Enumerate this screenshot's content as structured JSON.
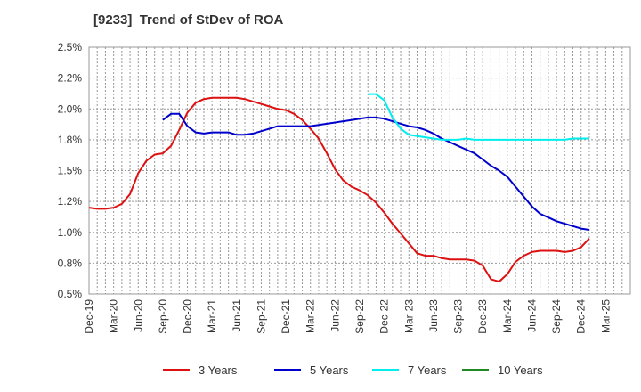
{
  "chart_data": {
    "type": "line",
    "title": "[9233]  Trend of StDev of ROA",
    "xlabel": "",
    "ylabel": "",
    "ylim": [
      0.5,
      2.5
    ],
    "y_ticks": [
      "0.5%",
      "0.8%",
      "1.0%",
      "1.2%",
      "1.5%",
      "1.8%",
      "2.0%",
      "2.2%",
      "2.5%"
    ],
    "x_ticks": [
      "Dec-19",
      "Mar-20",
      "Jun-20",
      "Sep-20",
      "Dec-20",
      "Mar-21",
      "Jun-21",
      "Sep-21",
      "Dec-21",
      "Mar-22",
      "Jun-22",
      "Sep-22",
      "Dec-22",
      "Mar-23",
      "Jun-23",
      "Sep-23",
      "Dec-23",
      "Mar-24",
      "Jun-24",
      "Sep-24",
      "Dec-24",
      "Mar-25"
    ],
    "grid": true,
    "legend_position": "bottom",
    "series": [
      {
        "name": "3 Years",
        "color": "#dd1111",
        "values": [
          1.2,
          1.19,
          1.19,
          1.2,
          1.23,
          1.31,
          1.48,
          1.58,
          1.63,
          1.64,
          1.7,
          1.83,
          1.97,
          2.05,
          2.08,
          2.09,
          2.09,
          2.09,
          2.09,
          2.08,
          2.06,
          2.04,
          2.02,
          2.0,
          1.99,
          1.96,
          1.91,
          1.84,
          1.76,
          1.64,
          1.51,
          1.42,
          1.37,
          1.34,
          1.3,
          1.24,
          1.16,
          1.07,
          0.99,
          0.91,
          0.83,
          0.81,
          0.81,
          0.79,
          0.78,
          0.78,
          0.78,
          0.77,
          0.73,
          0.62,
          0.6,
          0.66,
          0.76,
          0.81,
          0.84,
          0.85,
          0.85,
          0.85,
          0.84,
          0.85,
          0.88,
          0.95
        ]
      },
      {
        "name": "5 Years",
        "color": "#0000cc",
        "values": [
          null,
          null,
          null,
          null,
          null,
          null,
          null,
          null,
          null,
          1.91,
          1.96,
          1.96,
          1.86,
          1.81,
          1.8,
          1.81,
          1.81,
          1.81,
          1.79,
          1.79,
          1.8,
          1.82,
          1.84,
          1.86,
          1.86,
          1.86,
          1.86,
          1.86,
          1.87,
          1.88,
          1.89,
          1.9,
          1.91,
          1.92,
          1.93,
          1.93,
          1.92,
          1.9,
          1.88,
          1.86,
          1.85,
          1.83,
          1.8,
          1.76,
          1.73,
          1.7,
          1.67,
          1.64,
          1.59,
          1.54,
          1.5,
          1.45,
          1.37,
          1.29,
          1.21,
          1.15,
          1.12,
          1.09,
          1.07,
          1.05,
          1.03,
          1.02
        ]
      },
      {
        "name": "7 Years",
        "color": "#00eeee",
        "values": [
          null,
          null,
          null,
          null,
          null,
          null,
          null,
          null,
          null,
          null,
          null,
          null,
          null,
          null,
          null,
          null,
          null,
          null,
          null,
          null,
          null,
          null,
          null,
          null,
          null,
          null,
          null,
          null,
          null,
          null,
          null,
          null,
          null,
          null,
          2.12,
          2.12,
          2.07,
          1.93,
          1.84,
          1.79,
          1.78,
          1.77,
          1.76,
          1.75,
          1.75,
          1.75,
          1.76,
          1.75,
          1.75,
          1.75,
          1.75,
          1.75,
          1.75,
          1.75,
          1.75,
          1.75,
          1.75,
          1.75,
          1.75,
          1.76,
          1.76,
          1.76
        ]
      },
      {
        "name": "10 Years",
        "color": "#228822",
        "values": []
      }
    ]
  }
}
